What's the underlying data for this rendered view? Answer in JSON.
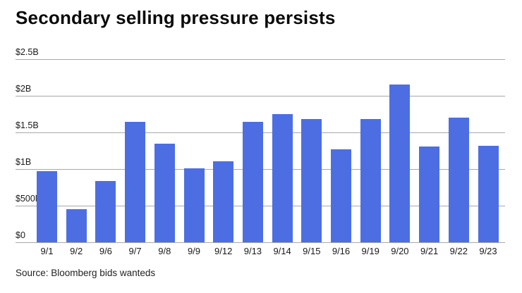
{
  "header": {
    "title": "Secondary selling pressure persists"
  },
  "footer": {
    "source": "Source: Bloomberg bids wanteds"
  },
  "colors": {
    "bar": "#4d6ee3",
    "gridline": "#a8a8a8",
    "title_text": "#0a0a0a",
    "tick_text": "#1a1a1a",
    "background": "#ffffff"
  },
  "chart_data": {
    "type": "bar",
    "title": "Secondary selling pressure persists",
    "xlabel": "",
    "ylabel": "",
    "unit": "USD (B = billions, M = millions)",
    "categories": [
      "9/1",
      "9/2",
      "9/6",
      "9/7",
      "9/8",
      "9/9",
      "9/12",
      "9/13",
      "9/14",
      "9/15",
      "9/16",
      "9/19",
      "9/20",
      "9/21",
      "9/22",
      "9/23"
    ],
    "values": [
      0.97,
      0.45,
      0.84,
      1.64,
      1.35,
      1.01,
      1.11,
      1.64,
      1.75,
      1.68,
      1.27,
      1.68,
      2.15,
      1.31,
      1.7,
      1.32
    ],
    "ylim": [
      0,
      2.5
    ],
    "yticks": [
      {
        "value": 0,
        "label": "$0"
      },
      {
        "value": 0.5,
        "label": "$500M"
      },
      {
        "value": 1,
        "label": "$1B"
      },
      {
        "value": 1.5,
        "label": "$1.5B"
      },
      {
        "value": 2,
        "label": "$2B"
      },
      {
        "value": 2.5,
        "label": "$2.5B"
      }
    ],
    "grid": true,
    "legend": false,
    "source": "Source: Bloomberg bids wanteds"
  }
}
